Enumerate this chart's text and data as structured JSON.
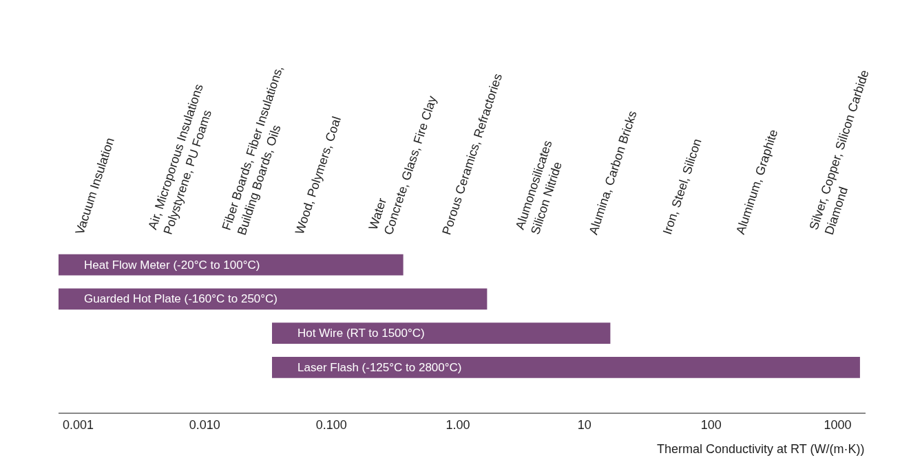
{
  "chart_data": {
    "type": "bar",
    "orientation": "horizontal",
    "log": "x",
    "categories": [
      "Heat Flow Meter (-20°C to 100°C)",
      "Guarded Hot Plate (-160°C to 250°C)",
      "Hot Wire (RT to 1500°C)",
      "Laser Flash (-125°C to 2800°C)"
    ],
    "base": [
      0.0007,
      0.0007,
      0.034,
      0.034
    ],
    "values": [
      0.3693,
      1.6993,
      15.966,
      1499.966
    ],
    "color": "#7a4a7c",
    "xlabel": "Thermal Conductivity at RT (W/(m·K))",
    "xlim": [
      0.0007,
      1660
    ],
    "xticks": [
      {
        "value": 0.001,
        "label": "0.001"
      },
      {
        "value": 0.01,
        "label": "0.010"
      },
      {
        "value": 0.1,
        "label": "0.100"
      },
      {
        "value": 1,
        "label": "1.00"
      },
      10,
      100,
      1000
    ],
    "tick_labels": "x",
    "annotations": [
      "Vacuum Insulation",
      "Air, Microporous Insulations\nPolystyrene, PU Foams",
      "Fiber Boards, Fiber Insulations,\nBuilding Boards, Oils",
      "Wood, Polymers, Coal",
      "Water\nConcrete, Glass, Fire Clay",
      "Porous Ceramics, Refractories",
      "Alumonosilicates\nSilicon Nitride",
      "Alumina, Carbon Bricks",
      "Iron, Steel, Silicon",
      "Aluminum, Graphite",
      "Silver, Copper, Silicon Carbide\nDiamond"
    ]
  }
}
